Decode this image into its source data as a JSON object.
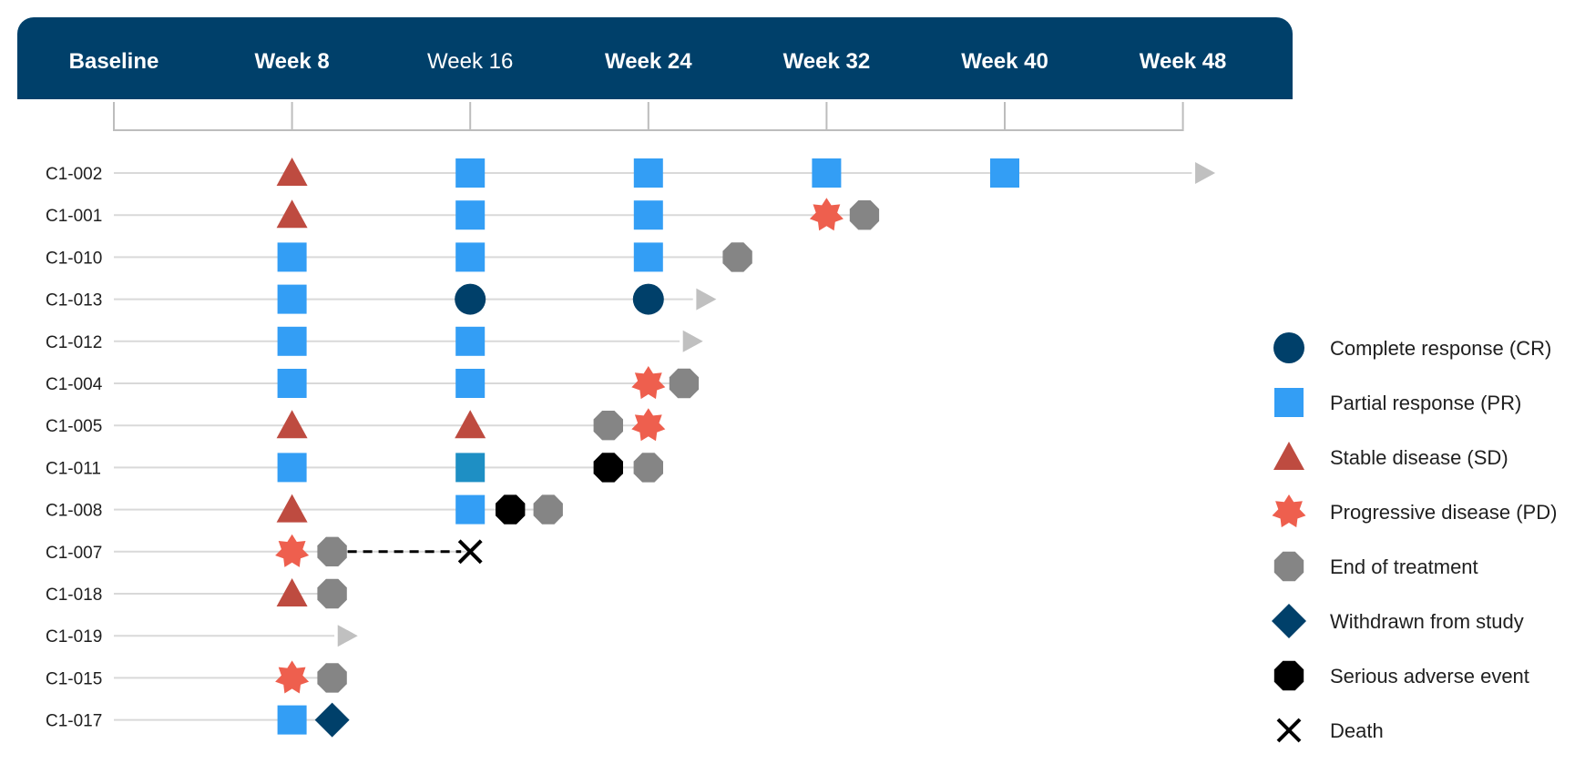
{
  "chart_data": {
    "type": "swimmer",
    "x_categories": [
      "Baseline",
      "Week 8",
      "Week 16",
      "Week 24",
      "Week 32",
      "Week 40",
      "Week 48"
    ],
    "x_unit": "week",
    "x_values": [
      0,
      8,
      16,
      24,
      32,
      40,
      48
    ],
    "colors": {
      "header": "#00406a",
      "CR": "#00406a",
      "PR": "#339ef5",
      "PR_alt": "#1e8fc4",
      "SD": "#be4b40",
      "PD": "#ee5f4e",
      "EOT": "#858585",
      "WD": "#00406a",
      "SAE": "#000000",
      "death": "#000000",
      "ongoing": "#c0c0c0",
      "lane": "#d9d9d9"
    },
    "subjects": [
      {
        "id": "C1-002",
        "ongoing_week": 49,
        "events": [
          {
            "type": "SD",
            "week": 8
          },
          {
            "type": "PR",
            "week": 16
          },
          {
            "type": "PR",
            "week": 24
          },
          {
            "type": "PR",
            "week": 32
          },
          {
            "type": "PR",
            "week": 40
          }
        ]
      },
      {
        "id": "C1-001",
        "events": [
          {
            "type": "SD",
            "week": 8
          },
          {
            "type": "PR",
            "week": 16
          },
          {
            "type": "PR",
            "week": 24
          },
          {
            "type": "PD",
            "week": 32
          },
          {
            "type": "EOT",
            "week": 33.7
          }
        ]
      },
      {
        "id": "C1-010",
        "events": [
          {
            "type": "PR",
            "week": 8
          },
          {
            "type": "PR",
            "week": 16
          },
          {
            "type": "PR",
            "week": 24
          },
          {
            "type": "EOT",
            "week": 28
          }
        ]
      },
      {
        "id": "C1-013",
        "ongoing_week": 26.6,
        "events": [
          {
            "type": "PR",
            "week": 8
          },
          {
            "type": "CR",
            "week": 16
          },
          {
            "type": "CR",
            "week": 24
          }
        ]
      },
      {
        "id": "C1-012",
        "ongoing_week": 26,
        "events": [
          {
            "type": "PR",
            "week": 8
          },
          {
            "type": "PR",
            "week": 16
          }
        ]
      },
      {
        "id": "C1-004",
        "events": [
          {
            "type": "PR",
            "week": 8
          },
          {
            "type": "PR",
            "week": 16
          },
          {
            "type": "PD",
            "week": 24
          },
          {
            "type": "EOT",
            "week": 25.6
          }
        ]
      },
      {
        "id": "C1-005",
        "events": [
          {
            "type": "SD",
            "week": 8
          },
          {
            "type": "SD",
            "week": 16
          },
          {
            "type": "EOT",
            "week": 22.2
          },
          {
            "type": "PD",
            "week": 24
          }
        ]
      },
      {
        "id": "C1-011",
        "events": [
          {
            "type": "PR",
            "week": 8
          },
          {
            "type": "PR",
            "week": 16,
            "variant": "alt"
          },
          {
            "type": "SAE",
            "week": 22.2
          },
          {
            "type": "EOT",
            "week": 24
          }
        ]
      },
      {
        "id": "C1-008",
        "events": [
          {
            "type": "SD",
            "week": 8
          },
          {
            "type": "PR",
            "week": 16
          },
          {
            "type": "SAE",
            "week": 17.8
          },
          {
            "type": "EOT",
            "week": 19.5
          }
        ]
      },
      {
        "id": "C1-007",
        "followup": {
          "from_week": 9.8,
          "to_week": 16
        },
        "events": [
          {
            "type": "PD",
            "week": 8
          },
          {
            "type": "EOT",
            "week": 9.8
          },
          {
            "type": "death",
            "week": 16
          }
        ]
      },
      {
        "id": "C1-018",
        "events": [
          {
            "type": "SD",
            "week": 8
          },
          {
            "type": "EOT",
            "week": 9.8
          }
        ]
      },
      {
        "id": "C1-019",
        "ongoing_week": 10.5,
        "events": []
      },
      {
        "id": "C1-015",
        "events": [
          {
            "type": "PD",
            "week": 8
          },
          {
            "type": "EOT",
            "week": 9.8
          }
        ]
      },
      {
        "id": "C1-017",
        "events": [
          {
            "type": "PR",
            "week": 8
          },
          {
            "type": "WD",
            "week": 9.8
          }
        ]
      }
    ],
    "legend": [
      {
        "key": "CR",
        "label": "Complete response (CR)"
      },
      {
        "key": "PR",
        "label": "Partial response (PR)"
      },
      {
        "key": "SD",
        "label": "Stable disease (SD)"
      },
      {
        "key": "PD",
        "label": "Progressive disease (PD)"
      },
      {
        "key": "EOT",
        "label": "End of treatment"
      },
      {
        "key": "WD",
        "label": "Withdrawn from study"
      },
      {
        "key": "SAE",
        "label": "Serious adverse event"
      },
      {
        "key": "death",
        "label": "Death"
      }
    ],
    "legend_position": "right"
  }
}
